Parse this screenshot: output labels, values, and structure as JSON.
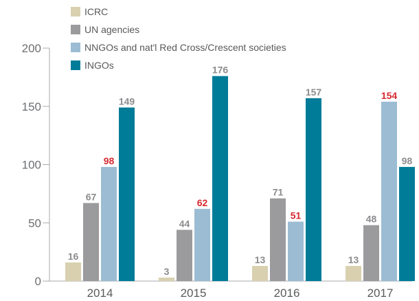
{
  "chart_data": {
    "type": "bar",
    "categories": [
      "2014",
      "2015",
      "2016",
      "2017"
    ],
    "series": [
      {
        "name": "ICRC",
        "values": [
          16,
          3,
          13,
          13
        ],
        "color": "#d9d0b0"
      },
      {
        "name": "UN agencies",
        "values": [
          67,
          44,
          71,
          48
        ],
        "color": "#9b9b9e"
      },
      {
        "name": "NNGOs and nat'l Red Cross/Crescent societies",
        "values": [
          98,
          62,
          51,
          154
        ],
        "color": "#9bbcd3"
      },
      {
        "name": "INGOs",
        "values": [
          149,
          176,
          157,
          98
        ],
        "color": "#007c99"
      }
    ],
    "highlight_series": "NNGOs and nat'l Red Cross/Crescent societies",
    "highlight_label_color": "#d7282f",
    "default_label_color": "#8c8c8f",
    "ylim": [
      0,
      200
    ],
    "yticks": [
      0,
      50,
      100,
      150,
      200
    ],
    "title": "",
    "xlabel": "",
    "ylabel": "",
    "grid": false,
    "legend_position": "top-left"
  }
}
